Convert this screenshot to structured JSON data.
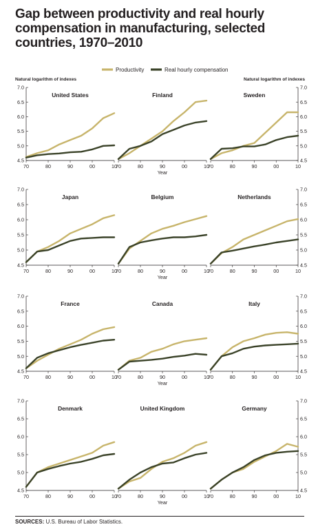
{
  "title": "Gap between productivity and real hourly compensation in manufacturing, selected countries, 1970–2010",
  "source": {
    "label": "SOURCES:",
    "text": "U.S. Bureau of Labor Statistics."
  },
  "legend": [
    {
      "name": "Productivity",
      "color": "#c7b46a"
    },
    {
      "name": "Real hourly compensation",
      "color": "#3a4228"
    }
  ],
  "axis_title_left": "Natural logarithm of indexes",
  "axis_title_right": "Natural logarithm of indexes",
  "x_axis_label": "Year",
  "chart_data": {
    "type": "line",
    "xlim": [
      1970,
      2010
    ],
    "ylim": [
      4.5,
      7.0
    ],
    "x_ticks": [
      "70",
      "80",
      "90",
      "00",
      "10"
    ],
    "y_ticks": [
      "4.5",
      "5.0",
      "5.5",
      "6.0",
      "6.5",
      "7.0"
    ],
    "years": [
      1970,
      1975,
      1980,
      1985,
      1990,
      1995,
      2000,
      2005,
      2010
    ],
    "panels": [
      {
        "country": "United States",
        "productivity": [
          4.62,
          4.75,
          4.85,
          5.05,
          5.2,
          5.35,
          5.6,
          5.95,
          6.12
        ],
        "compensation": [
          4.6,
          4.68,
          4.72,
          4.74,
          4.78,
          4.8,
          4.88,
          5.0,
          5.02
        ]
      },
      {
        "country": "Finland",
        "productivity": [
          4.55,
          4.75,
          5.0,
          5.25,
          5.5,
          5.85,
          6.15,
          6.5,
          6.55
        ],
        "compensation": [
          4.55,
          4.9,
          5.0,
          5.15,
          5.4,
          5.55,
          5.7,
          5.8,
          5.85
        ]
      },
      {
        "country": "Sweden",
        "productivity": [
          4.55,
          4.75,
          4.85,
          5.0,
          5.1,
          5.45,
          5.8,
          6.15,
          6.15
        ],
        "compensation": [
          4.55,
          4.9,
          4.92,
          4.98,
          4.98,
          5.05,
          5.2,
          5.3,
          5.35
        ]
      },
      {
        "country": "Japan",
        "productivity": [
          4.6,
          4.95,
          5.1,
          5.3,
          5.55,
          5.7,
          5.85,
          6.05,
          6.15
        ],
        "compensation": [
          4.6,
          4.95,
          5.0,
          5.15,
          5.3,
          5.38,
          5.4,
          5.42,
          5.42
        ]
      },
      {
        "country": "Belgium",
        "productivity": [
          4.55,
          5.05,
          5.3,
          5.55,
          5.7,
          5.8,
          5.92,
          6.02,
          6.12
        ],
        "compensation": [
          4.55,
          5.1,
          5.25,
          5.32,
          5.38,
          5.42,
          5.42,
          5.45,
          5.5
        ]
      },
      {
        "country": "Netherlands",
        "productivity": [
          4.55,
          4.9,
          5.1,
          5.35,
          5.5,
          5.65,
          5.8,
          5.95,
          6.02
        ],
        "compensation": [
          4.55,
          4.92,
          4.98,
          5.05,
          5.12,
          5.18,
          5.25,
          5.3,
          5.35
        ]
      },
      {
        "country": "France",
        "productivity": [
          4.6,
          4.85,
          5.05,
          5.25,
          5.4,
          5.55,
          5.75,
          5.9,
          5.97
        ],
        "compensation": [
          4.6,
          4.95,
          5.1,
          5.2,
          5.3,
          5.38,
          5.45,
          5.52,
          5.55
        ]
      },
      {
        "country": "Canada",
        "productivity": [
          4.55,
          4.85,
          4.95,
          5.15,
          5.25,
          5.4,
          5.5,
          5.55,
          5.6
        ],
        "compensation": [
          4.55,
          4.82,
          4.85,
          4.88,
          4.92,
          4.98,
          5.02,
          5.08,
          5.05
        ]
      },
      {
        "country": "Italy",
        "productivity": [
          4.55,
          5.0,
          5.3,
          5.5,
          5.6,
          5.72,
          5.78,
          5.8,
          5.75
        ],
        "compensation": [
          4.55,
          5.0,
          5.1,
          5.25,
          5.32,
          5.36,
          5.38,
          5.4,
          5.42
        ]
      },
      {
        "country": "Denmark",
        "productivity": [
          4.6,
          5.0,
          5.15,
          5.25,
          5.35,
          5.45,
          5.55,
          5.75,
          5.85
        ],
        "compensation": [
          4.6,
          5.0,
          5.1,
          5.18,
          5.25,
          5.3,
          5.38,
          5.48,
          5.52
        ]
      },
      {
        "country": "United Kingdom",
        "productivity": [
          4.55,
          4.75,
          4.85,
          5.1,
          5.3,
          5.4,
          5.55,
          5.75,
          5.85
        ],
        "compensation": [
          4.55,
          4.8,
          5.0,
          5.15,
          5.25,
          5.28,
          5.4,
          5.5,
          5.55
        ]
      },
      {
        "country": "Germany",
        "productivity": [
          4.55,
          4.8,
          5.0,
          5.1,
          5.3,
          5.45,
          5.6,
          5.8,
          5.72
        ],
        "compensation": [
          4.55,
          4.8,
          5.0,
          5.15,
          5.35,
          5.48,
          5.55,
          5.58,
          5.6
        ]
      }
    ]
  }
}
